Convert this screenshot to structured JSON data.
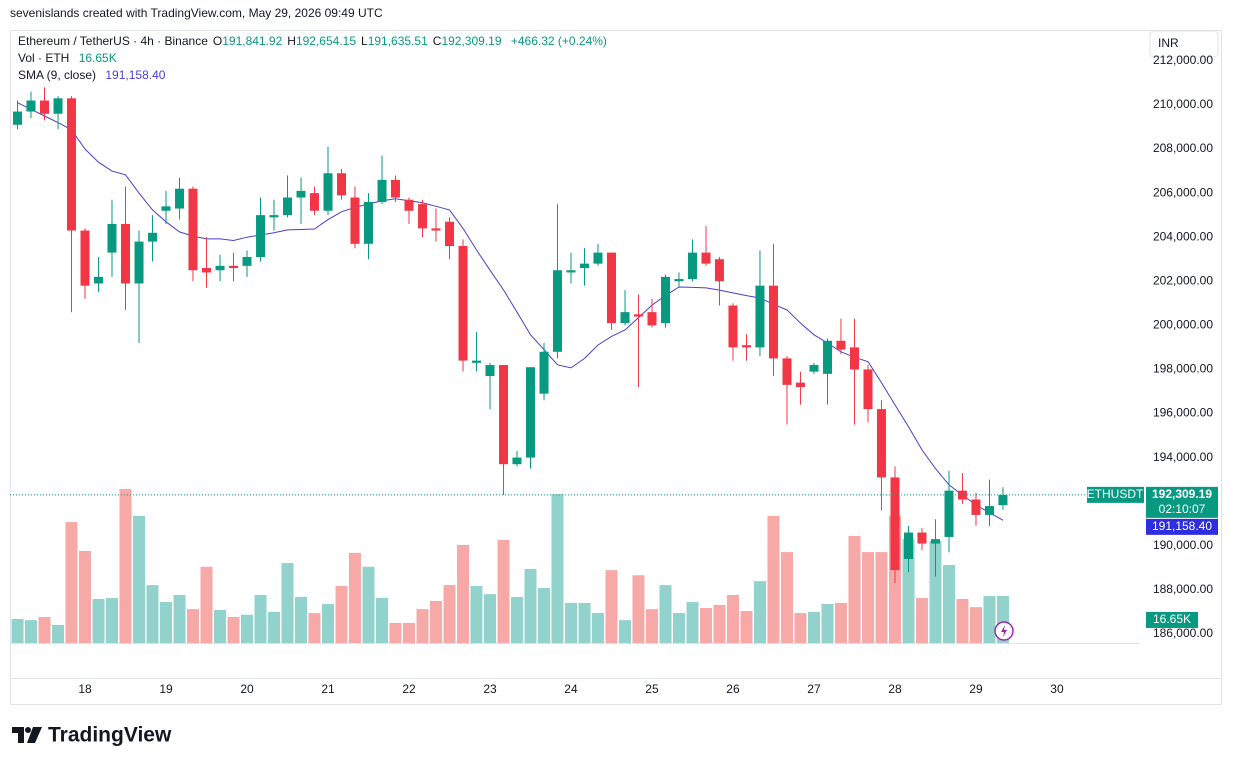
{
  "header": {
    "credit": "sevenislands created with TradingView.com, May 29, 2026 09:49 UTC"
  },
  "currency_button": "INR",
  "footer": {
    "logo": "TradingView"
  },
  "chart_data": {
    "type": "candlestick",
    "legend": {
      "symbol": "Ethereum / TetherUS · 4h · Binance",
      "ohlc": [
        {
          "key": "O",
          "value": "191,841.92"
        },
        {
          "key": "H",
          "value": "192,654.15"
        },
        {
          "key": "L",
          "value": "191,635.51"
        },
        {
          "key": "C",
          "value": "192,309.19"
        }
      ],
      "change": "+466.32 (+0.24%)",
      "volume": {
        "label": "Vol · ETH",
        "value": "16.65K"
      },
      "indicator": {
        "label": "SMA (9, close)",
        "value": "191,158.40"
      }
    },
    "x": [
      17.167,
      17.333,
      17.5,
      17.667,
      17.833,
      18,
      18.167,
      18.333,
      18.5,
      18.667,
      18.833,
      19,
      19.167,
      19.333,
      19.5,
      19.667,
      19.833,
      20,
      20.167,
      20.333,
      20.5,
      20.667,
      20.833,
      21,
      21.167,
      21.333,
      21.5,
      21.667,
      21.833,
      22,
      22.167,
      22.333,
      22.5,
      22.667,
      22.833,
      23,
      23.167,
      23.333,
      23.5,
      23.667,
      23.833,
      24,
      24.167,
      24.333,
      24.5,
      24.667,
      24.833,
      25,
      25.167,
      25.333,
      25.5,
      25.667,
      25.833,
      26,
      26.167,
      26.333,
      26.5,
      26.667,
      26.833,
      27,
      27.167,
      27.333,
      27.5,
      27.667,
      27.833,
      28,
      28.167,
      28.333,
      28.5,
      28.667,
      28.833,
      29,
      29.167,
      29.333
    ],
    "open": [
      209100,
      209700,
      210200,
      209600,
      210300,
      204300,
      201900,
      203300,
      204600,
      201900,
      203800,
      205200,
      205300,
      206200,
      202600,
      202500,
      202700,
      202700,
      203100,
      204900,
      205000,
      205800,
      206000,
      205200,
      206900,
      205800,
      203700,
      205600,
      206600,
      205700,
      205500,
      204400,
      204700,
      203600,
      198300,
      197700,
      198200,
      193700,
      194000,
      196900,
      198800,
      202400,
      202600,
      202800,
      203300,
      200100,
      200500,
      200600,
      200100,
      202000,
      202100,
      203300,
      203000,
      200900,
      199100,
      199000,
      201800,
      198500,
      197400,
      197900,
      197800,
      199300,
      199000,
      198000,
      196200,
      193100,
      189400,
      190600,
      190100,
      190400,
      192500,
      192100,
      191400,
      191841.92
    ],
    "high": [
      210200,
      210600,
      210800,
      210400,
      210400,
      204400,
      203100,
      205700,
      206300,
      204300,
      205000,
      206100,
      206700,
      206300,
      204000,
      203200,
      203300,
      203400,
      205800,
      205700,
      206800,
      206700,
      206300,
      208100,
      207100,
      206300,
      206000,
      207700,
      206800,
      205800,
      205700,
      205300,
      204900,
      203900,
      199700,
      198300,
      198200,
      194300,
      198100,
      199200,
      205500,
      203300,
      203500,
      203700,
      203300,
      201600,
      201400,
      201200,
      202300,
      202400,
      203900,
      204500,
      203100,
      201000,
      199600,
      203400,
      203700,
      198600,
      197900,
      198300,
      199400,
      200300,
      200300,
      198200,
      196600,
      193600,
      190900,
      190800,
      191200,
      193400,
      193300,
      192400,
      193000,
      192654.15
    ],
    "low": [
      208900,
      209400,
      209300,
      208900,
      200600,
      201200,
      201500,
      202200,
      200700,
      199200,
      202900,
      204600,
      204800,
      202000,
      201700,
      202000,
      202000,
      202200,
      202900,
      204300,
      204900,
      204600,
      205000,
      205000,
      205700,
      203500,
      203000,
      205500,
      205600,
      204600,
      204000,
      203800,
      203000,
      197900,
      197900,
      196200,
      192300,
      193600,
      193500,
      196600,
      198500,
      201900,
      201800,
      202700,
      199800,
      200000,
      197200,
      199900,
      199900,
      201700,
      202000,
      202700,
      200900,
      198400,
      198400,
      198600,
      197700,
      195500,
      196400,
      197800,
      196400,
      198700,
      195500,
      195600,
      191600,
      188300,
      188800,
      189800,
      188600,
      189700,
      191900,
      190900,
      190900,
      191635.51
    ],
    "close": [
      209700,
      210200,
      209600,
      210300,
      204300,
      201800,
      202200,
      204600,
      201900,
      203800,
      204200,
      205400,
      206200,
      202500,
      202400,
      202700,
      202600,
      203100,
      205000,
      205000,
      205800,
      206100,
      205200,
      206900,
      205900,
      203700,
      205600,
      206600,
      205800,
      205200,
      204400,
      204300,
      203600,
      198400,
      198400,
      198200,
      193700,
      194000,
      198100,
      198800,
      202500,
      202500,
      202800,
      203300,
      200100,
      200600,
      200400,
      200000,
      202200,
      202100,
      203300,
      202800,
      202000,
      199000,
      199000,
      201800,
      198500,
      197300,
      197200,
      198200,
      199300,
      198900,
      198000,
      196200,
      193100,
      188900,
      190600,
      190100,
      190300,
      192500,
      192100,
      191400,
      191800,
      192309.19
    ],
    "volume": [
      8.5,
      8.1,
      9.2,
      6.4,
      42.8,
      32.6,
      15.6,
      15.9,
      54.5,
      45,
      20.5,
      14.5,
      17,
      12,
      27,
      11.7,
      9.2,
      10,
      17,
      11,
      28.3,
      16.3,
      10.6,
      13.8,
      20.2,
      31.9,
      27,
      16,
      7.1,
      7.1,
      12,
      14.9,
      20.5,
      34.7,
      20.2,
      17.3,
      36.5,
      16.3,
      26.2,
      19.5,
      52.7,
      14.2,
      14.2,
      10.6,
      25.8,
      8.1,
      24,
      12,
      20.5,
      10.6,
      14.5,
      12.4,
      13.5,
      17,
      11.3,
      21.9,
      45,
      32.2,
      10.6,
      11,
      13.8,
      14.2,
      37.9,
      32.2,
      32.2,
      45,
      36.8,
      15.9,
      36.1,
      27.6,
      15.6,
      12.7,
      16.6,
      16.65
    ],
    "sma": {
      "name": "SMA (9, close)",
      "color": "#4a3fcf",
      "values": [
        210100,
        209800,
        209500,
        209200,
        208870,
        208000,
        207400,
        207000,
        206830,
        206000,
        205240,
        204700,
        204240,
        204050,
        203920,
        203920,
        203850,
        204000,
        204100,
        204200,
        204330,
        204350,
        204370,
        204800,
        205150,
        205350,
        205510,
        205650,
        205740,
        205650,
        205560,
        205400,
        205240,
        204400,
        203420,
        202500,
        201610,
        200600,
        199570,
        198900,
        198210,
        198070,
        198500,
        199110,
        199500,
        199790,
        200350,
        200920,
        201350,
        201740,
        201720,
        201700,
        201600,
        201470,
        201350,
        201240,
        200950,
        200700,
        200100,
        199570,
        199200,
        198800,
        198550,
        198350,
        197400,
        196390,
        195400,
        194350,
        193500,
        192760,
        192300,
        191850,
        191500,
        191158.4
      ]
    },
    "up_color": "#089981",
    "down_color": "#f23645",
    "volume_up_color": "#92d2cc",
    "volume_down_color": "#f7a9a7",
    "xlim": [
      17.074,
      31.025
    ],
    "xticks": [
      18,
      19,
      20,
      21,
      22,
      23,
      24,
      25,
      26,
      27,
      28,
      29,
      30
    ],
    "ylim": [
      184000,
      213400
    ],
    "yticks": [
      {
        "value": 186000,
        "label": "186,000.00"
      },
      {
        "value": 188000,
        "label": "188,000.00"
      },
      {
        "value": 190000,
        "label": "190,000.00"
      },
      {
        "value": 192000,
        "label": "192,000.00"
      },
      {
        "value": 194000,
        "label": "194,000.00"
      },
      {
        "value": 196000,
        "label": "196,000.00"
      },
      {
        "value": 198000,
        "label": "198,000.00"
      },
      {
        "value": 200000,
        "label": "200,000.00"
      },
      {
        "value": 202000,
        "label": "202,000.00"
      },
      {
        "value": 204000,
        "label": "204,000.00"
      },
      {
        "value": 206000,
        "label": "206,000.00"
      },
      {
        "value": 208000,
        "label": "208,000.00"
      },
      {
        "value": 210000,
        "label": "210,000.00"
      },
      {
        "value": 212000,
        "label": "212,000.00"
      }
    ],
    "volume_ylim": [
      0,
      57
    ],
    "grid": false,
    "price_tags": [
      {
        "name": "ETHUSDT",
        "value": 192309.19,
        "label": "192,309.19",
        "countdown": "02:10:07",
        "color": "#089981"
      },
      {
        "value": 191158.4,
        "label": "191,158.40",
        "color": "#2e2ee0"
      }
    ],
    "volume_tag": {
      "value": 16.65,
      "label": "16.65K",
      "color": "#089981"
    }
  }
}
